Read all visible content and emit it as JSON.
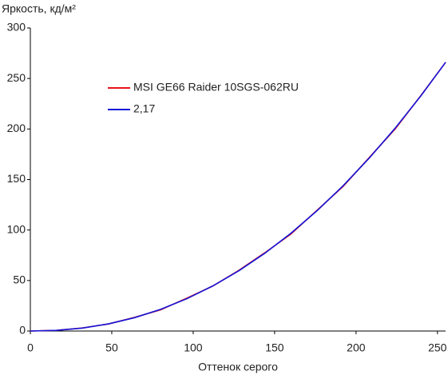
{
  "chart_data": {
    "type": "line",
    "title": "Яркость, кд/м²",
    "x_label": "Оттенок серого",
    "x": [
      0,
      16,
      32,
      48,
      64,
      80,
      96,
      112,
      128,
      144,
      160,
      176,
      192,
      208,
      224,
      240,
      255
    ],
    "series": [
      {
        "name": "MSI GE66 Raider 10SGS-062RU",
        "color": "#e8121a",
        "values": [
          0,
          0.7,
          3,
          7,
          13.5,
          21,
          32.5,
          44.5,
          60,
          77.5,
          96,
          119.5,
          143,
          171.5,
          200,
          233.5,
          266
        ]
      },
      {
        "name": "2,17",
        "color": "#1414d8",
        "values": [
          0,
          0.65,
          2.94,
          7.1,
          13.2,
          21.5,
          31.9,
          44.6,
          59.6,
          77,
          96.8,
          119,
          143.7,
          171,
          200.8,
          233.2,
          266
        ]
      }
    ],
    "xlim": [
      0,
      255
    ],
    "xticks": [
      0,
      50,
      100,
      150,
      200,
      250
    ],
    "ylim": [
      0,
      300
    ],
    "yticks": [
      0,
      50,
      100,
      150,
      200,
      250,
      300
    ],
    "grid": false,
    "legend": "upper-left"
  }
}
